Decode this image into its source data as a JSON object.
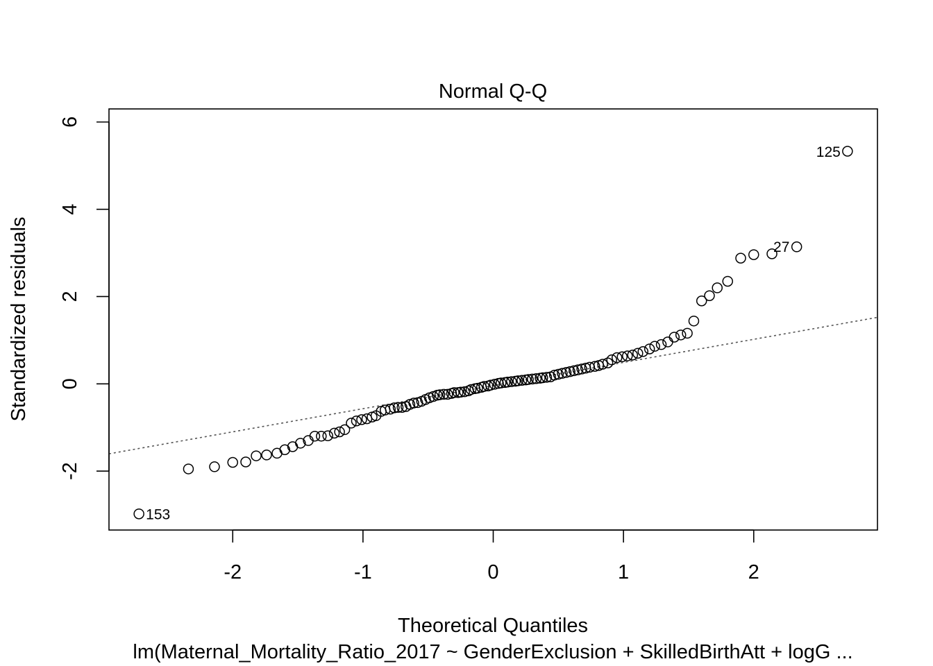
{
  "chart_data": {
    "type": "scatter",
    "title": "Normal Q-Q",
    "xlabel": "Theoretical Quantiles",
    "ylabel": "Standardized residuals",
    "subtitle": "lm(Maternal_Mortality_Ratio_2017 ~ GenderExclusion + SkilledBirthAtt + logG ...",
    "xlim": [
      -2.95,
      2.95
    ],
    "ylim": [
      -3.35,
      6.3
    ],
    "x_ticks": [
      -2,
      -1,
      0,
      1,
      2
    ],
    "y_ticks": [
      -2,
      0,
      2,
      4,
      6
    ],
    "x_tick_labels": [
      "-2",
      "-1",
      "0",
      "1",
      "2"
    ],
    "y_tick_labels": [
      "-2",
      "0",
      "2",
      "4",
      "6"
    ],
    "grid": false,
    "reference_line": {
      "intercept": -0.04,
      "slope": 0.53,
      "style": "dotted",
      "color": "#555555"
    },
    "labeled_points": [
      {
        "label": "125",
        "x": 2.72,
        "y": 5.33,
        "side": "left"
      },
      {
        "label": "27",
        "x": 2.14,
        "y": 2.98,
        "side": "right-above"
      },
      {
        "label": "153",
        "x": -2.72,
        "y": -2.98,
        "side": "right"
      }
    ],
    "points": [
      [
        -2.72,
        -2.98
      ],
      [
        -2.34,
        -1.95
      ],
      [
        -2.14,
        -1.9
      ],
      [
        -2.0,
        -1.8
      ],
      [
        -1.9,
        -1.79
      ],
      [
        -1.82,
        -1.65
      ],
      [
        -1.74,
        -1.63
      ],
      [
        -1.66,
        -1.59
      ],
      [
        -1.6,
        -1.51
      ],
      [
        -1.54,
        -1.44
      ],
      [
        -1.48,
        -1.36
      ],
      [
        -1.42,
        -1.3
      ],
      [
        -1.37,
        -1.2
      ],
      [
        -1.32,
        -1.2
      ],
      [
        -1.27,
        -1.19
      ],
      [
        -1.22,
        -1.13
      ],
      [
        -1.18,
        -1.1
      ],
      [
        -1.14,
        -1.05
      ],
      [
        -1.09,
        -0.9
      ],
      [
        -1.05,
        -0.85
      ],
      [
        -1.01,
        -0.82
      ],
      [
        -0.97,
        -0.8
      ],
      [
        -0.93,
        -0.76
      ],
      [
        -0.9,
        -0.73
      ],
      [
        -0.86,
        -0.63
      ],
      [
        -0.83,
        -0.6
      ],
      [
        -0.79,
        -0.58
      ],
      [
        -0.76,
        -0.55
      ],
      [
        -0.73,
        -0.54
      ],
      [
        -0.7,
        -0.54
      ],
      [
        -0.67,
        -0.52
      ],
      [
        -0.64,
        -0.47
      ],
      [
        -0.61,
        -0.44
      ],
      [
        -0.58,
        -0.43
      ],
      [
        -0.55,
        -0.4
      ],
      [
        -0.52,
        -0.36
      ],
      [
        -0.49,
        -0.32
      ],
      [
        -0.46,
        -0.29
      ],
      [
        -0.43,
        -0.26
      ],
      [
        -0.41,
        -0.25
      ],
      [
        -0.38,
        -0.24
      ],
      [
        -0.35,
        -0.24
      ],
      [
        -0.32,
        -0.22
      ],
      [
        -0.3,
        -0.2
      ],
      [
        -0.27,
        -0.2
      ],
      [
        -0.25,
        -0.19
      ],
      [
        -0.22,
        -0.18
      ],
      [
        -0.19,
        -0.16
      ],
      [
        -0.17,
        -0.13
      ],
      [
        -0.14,
        -0.11
      ],
      [
        -0.12,
        -0.1
      ],
      [
        -0.09,
        -0.08
      ],
      [
        -0.07,
        -0.06
      ],
      [
        -0.04,
        -0.05
      ],
      [
        -0.02,
        -0.03
      ],
      [
        0.01,
        -0.01
      ],
      [
        0.04,
        0.01
      ],
      [
        0.06,
        0.02
      ],
      [
        0.09,
        0.03
      ],
      [
        0.11,
        0.04
      ],
      [
        0.14,
        0.05
      ],
      [
        0.17,
        0.06
      ],
      [
        0.19,
        0.07
      ],
      [
        0.22,
        0.08
      ],
      [
        0.25,
        0.09
      ],
      [
        0.27,
        0.1
      ],
      [
        0.3,
        0.11
      ],
      [
        0.33,
        0.12
      ],
      [
        0.36,
        0.13
      ],
      [
        0.38,
        0.14
      ],
      [
        0.41,
        0.15
      ],
      [
        0.44,
        0.16
      ],
      [
        0.47,
        0.2
      ],
      [
        0.5,
        0.22
      ],
      [
        0.53,
        0.24
      ],
      [
        0.56,
        0.26
      ],
      [
        0.59,
        0.28
      ],
      [
        0.62,
        0.3
      ],
      [
        0.65,
        0.32
      ],
      [
        0.68,
        0.34
      ],
      [
        0.71,
        0.36
      ],
      [
        0.74,
        0.38
      ],
      [
        0.78,
        0.4
      ],
      [
        0.81,
        0.42
      ],
      [
        0.84,
        0.45
      ],
      [
        0.88,
        0.48
      ],
      [
        0.91,
        0.55
      ],
      [
        0.95,
        0.6
      ],
      [
        0.99,
        0.62
      ],
      [
        1.03,
        0.64
      ],
      [
        1.07,
        0.66
      ],
      [
        1.11,
        0.7
      ],
      [
        1.15,
        0.74
      ],
      [
        1.2,
        0.8
      ],
      [
        1.24,
        0.86
      ],
      [
        1.29,
        0.9
      ],
      [
        1.34,
        0.96
      ],
      [
        1.39,
        1.07
      ],
      [
        1.44,
        1.12
      ],
      [
        1.49,
        1.16
      ],
      [
        1.54,
        1.44
      ],
      [
        1.6,
        1.9
      ],
      [
        1.66,
        2.02
      ],
      [
        1.72,
        2.2
      ],
      [
        1.8,
        2.35
      ],
      [
        1.9,
        2.88
      ],
      [
        2.0,
        2.96
      ],
      [
        2.14,
        2.98
      ],
      [
        2.33,
        3.14
      ],
      [
        2.72,
        5.33
      ]
    ]
  }
}
